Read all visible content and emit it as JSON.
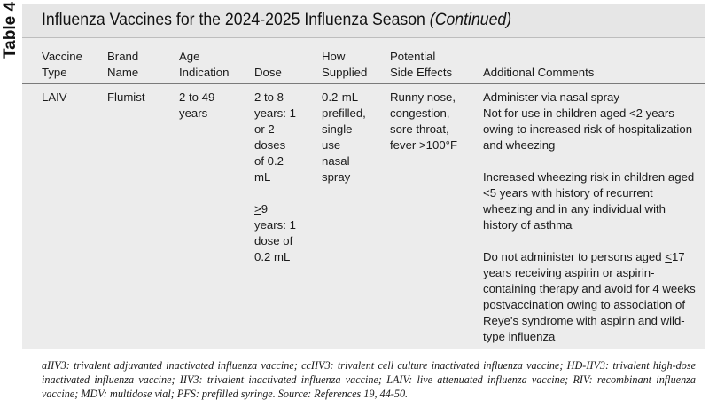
{
  "table": {
    "label": "Table 4",
    "title": "Influenza Vaccines for the 2024-2025 Influenza Season",
    "title_suffix": "(Continued)",
    "headers": {
      "vaccine_type": "Vaccine\nType",
      "brand_name": "Brand\nName",
      "age": "Age\nIndication",
      "dose": "Dose",
      "supplied": "How\nSupplied",
      "side_effects": "Potential\nSide Effects",
      "comments": "Additional Comments"
    },
    "row": {
      "vaccine_type": "LAIV",
      "brand_name": "Flumist",
      "age": "2 to 49\nyears",
      "dose_1": "2 to 8\nyears: 1\nor 2\ndoses\nof 0.2\nmL",
      "dose_2_symbol": ">",
      "dose_2_rest": "9\nyears: 1\ndose of\n0.2 mL",
      "supplied": "0.2-mL\nprefilled,\nsingle-\nuse\nnasal\nspray",
      "side_effects": "Runny nose,\ncongestion,\nsore throat,\nfever >100°F",
      "comments_1": "Administer via nasal spray\nNot for use in children aged <2 years\nowing to increased risk of hospitalization\nand wheezing",
      "comments_2": "Increased wheezing risk in children aged\n<5 years with history of recurrent\nwheezing and in any individual with\nhistory of asthma",
      "comments_3_a": "Do not administer to persons aged ",
      "comments_3_symbol": "<",
      "comments_3_b": "17\nyears receiving aspirin or aspirin-\ncontaining therapy and avoid for 4 weeks\npostvaccination owing to association of\nReye’s syndrome with aspirin and wild-\ntype influenza"
    },
    "footnote": "aIIV3: trivalent adjuvanted inactivated influenza vaccine; ccIIV3: trivalent cell culture inactivated influenza vaccine; HD-IIV3: trivalent high-dose inactivated influenza vaccine; IIV3: trivalent inactivated influenza vaccine; LAIV: live attenuated influenza vaccine; RIV: recombinant influenza vaccine; MDV: multidose vial; PFS: prefilled syringe. Source: References 19, 44-50."
  }
}
